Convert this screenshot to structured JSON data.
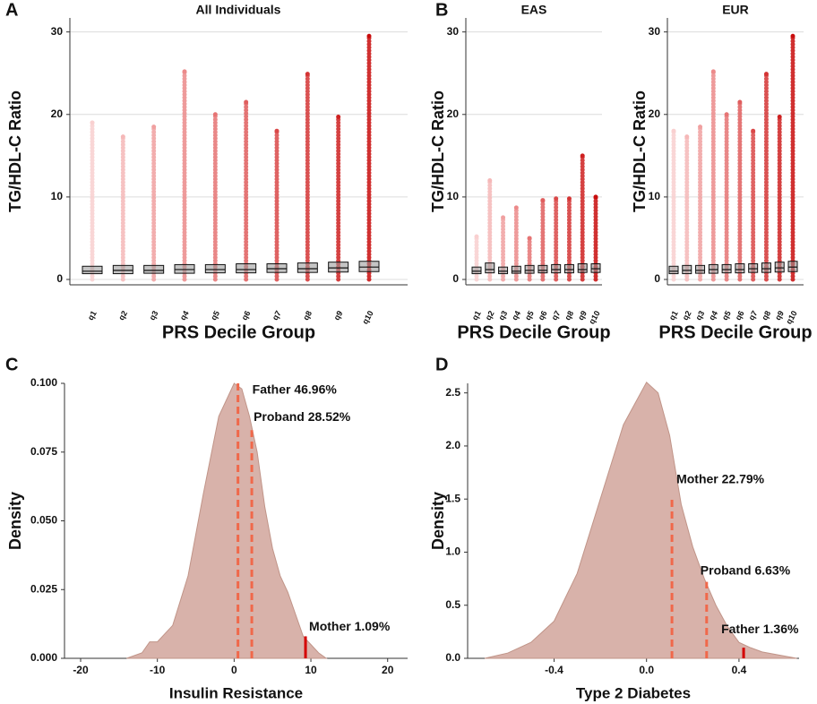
{
  "chart_data": [
    {
      "type": "box",
      "panel": "A",
      "title": "All Individuals",
      "y_label": "TG/HDL-C Ratio",
      "x_label": "PRS Decile Group",
      "categories": [
        "q1",
        "q2",
        "q3",
        "q4",
        "q5",
        "q6",
        "q7",
        "q8",
        "q9",
        "q10"
      ],
      "colors": [
        "#f9d0d0",
        "#f5b8b8",
        "#f0a0a0",
        "#ec8a8a",
        "#e67474",
        "#e05e5e",
        "#da4848",
        "#d43434",
        "#ce2020",
        "#c80c0c"
      ],
      "q1": [
        0.7,
        0.7,
        0.75,
        0.75,
        0.8,
        0.8,
        0.85,
        0.85,
        0.9,
        0.95
      ],
      "median": [
        1.0,
        1.1,
        1.1,
        1.2,
        1.2,
        1.2,
        1.3,
        1.3,
        1.4,
        1.5
      ],
      "q3": [
        1.6,
        1.7,
        1.7,
        1.8,
        1.8,
        1.9,
        1.9,
        2.0,
        2.1,
        2.2
      ],
      "max": [
        19,
        17.3,
        18.5,
        25.2,
        20,
        21.5,
        18,
        24.9,
        19.7,
        29.5
      ],
      "ylim": [
        -0.65,
        31.7
      ],
      "yticks": [
        0,
        10,
        20,
        30
      ],
      "grid": true
    },
    {
      "type": "box",
      "panel": "B",
      "title": "EAS",
      "y_label": "TG/HDL-C Ratio",
      "x_label": "PRS Decile Group",
      "categories": [
        "q1",
        "q2",
        "q3",
        "q4",
        "q5",
        "q6",
        "q7",
        "q8",
        "q9",
        "q10"
      ],
      "colors": [
        "#f9d0d0",
        "#f5b8b8",
        "#f0a0a0",
        "#ec8a8a",
        "#e67474",
        "#e05e5e",
        "#da4848",
        "#d43434",
        "#ce2020",
        "#c80c0c"
      ],
      "q1": [
        0.7,
        0.8,
        0.7,
        0.75,
        0.75,
        0.8,
        0.8,
        0.8,
        0.85,
        0.85
      ],
      "median": [
        1.0,
        1.2,
        1.0,
        1.0,
        1.1,
        1.1,
        1.2,
        1.2,
        1.2,
        1.3
      ],
      "q3": [
        1.5,
        2.0,
        1.5,
        1.6,
        1.7,
        1.7,
        1.8,
        1.8,
        1.9,
        1.9
      ],
      "max": [
        5.2,
        12,
        7.5,
        8.7,
        5,
        9.6,
        9.8,
        9.8,
        15,
        10
      ],
      "ylim": [
        -0.65,
        31.7
      ],
      "yticks": [
        0,
        10,
        20,
        30
      ],
      "grid": true
    },
    {
      "type": "box",
      "title": "EUR",
      "y_label": "TG/HDL-C Ratio",
      "x_label": "PRS Decile Group",
      "categories": [
        "q1",
        "q2",
        "q3",
        "q4",
        "q5",
        "q6",
        "q7",
        "q8",
        "q9",
        "q10"
      ],
      "colors": [
        "#f9d0d0",
        "#f5b8b8",
        "#f0a0a0",
        "#ec8a8a",
        "#e67474",
        "#e05e5e",
        "#da4848",
        "#d43434",
        "#ce2020",
        "#c80c0c"
      ],
      "q1": [
        0.7,
        0.7,
        0.75,
        0.75,
        0.8,
        0.8,
        0.85,
        0.85,
        0.9,
        0.95
      ],
      "median": [
        1.0,
        1.1,
        1.1,
        1.2,
        1.2,
        1.2,
        1.3,
        1.3,
        1.4,
        1.5
      ],
      "q3": [
        1.6,
        1.7,
        1.7,
        1.8,
        1.8,
        1.9,
        1.9,
        2.0,
        2.1,
        2.2
      ],
      "max": [
        18,
        17.3,
        18.5,
        25.2,
        20,
        21.5,
        18,
        24.9,
        19.7,
        29.5
      ],
      "ylim": [
        -0.65,
        31.7
      ],
      "yticks": [
        0,
        10,
        20,
        30
      ],
      "grid": true
    },
    {
      "type": "area",
      "panel": "C",
      "y_label": "Density",
      "x_label": "Insulin Resistance",
      "color": "#d8b2aa",
      "x": [
        -14,
        -12,
        -11,
        -10,
        -8,
        -6,
        -4,
        -2,
        0,
        1,
        2,
        3,
        4,
        5,
        6,
        7,
        8,
        9,
        10,
        11,
        12
      ],
      "values": [
        0,
        0.002,
        0.006,
        0.006,
        0.012,
        0.03,
        0.06,
        0.088,
        0.1,
        0.098,
        0.088,
        0.075,
        0.055,
        0.04,
        0.03,
        0.024,
        0.016,
        0.008,
        0.005,
        0.002,
        0
      ],
      "xlim": [
        -22.1,
        22.6
      ],
      "xticks": [
        -20,
        -10,
        0,
        10,
        20
      ],
      "ylim": [
        0,
        0.1
      ],
      "yticks": [
        {
          "value": 0,
          "label": "0.000"
        },
        {
          "value": 0.025,
          "label": "0.025"
        },
        {
          "value": 0.05,
          "label": "0.050"
        },
        {
          "value": 0.075,
          "label": "0.075"
        },
        {
          "value": 0.1,
          "label": "0.100"
        }
      ],
      "annotations": [
        {
          "label": "Father 46.96%",
          "x": 0.5,
          "y": 0.1,
          "style": "dashed",
          "color": "#f0684a"
        },
        {
          "label": "Proband 28.52%",
          "x": 2.3,
          "y": 0.083,
          "style": "dashed",
          "color": "#f0684a"
        },
        {
          "label": "Mother 1.09%",
          "x": 9.3,
          "y": 0.008,
          "style": "solid",
          "color": "#d40000"
        }
      ]
    },
    {
      "type": "area",
      "panel": "D",
      "y_label": "Density",
      "x_label": "Type 2 Diabetes",
      "color": "#d8b2aa",
      "x": [
        -0.7,
        -0.6,
        -0.5,
        -0.4,
        -0.3,
        -0.2,
        -0.1,
        0,
        0.05,
        0.1,
        0.15,
        0.2,
        0.25,
        0.3,
        0.35,
        0.4,
        0.45,
        0.5,
        0.6,
        0.65
      ],
      "values": [
        0,
        0.05,
        0.15,
        0.35,
        0.8,
        1.5,
        2.2,
        2.6,
        2.5,
        2.1,
        1.45,
        1.05,
        0.75,
        0.5,
        0.3,
        0.15,
        0.1,
        0.06,
        0.02,
        0
      ],
      "xlim": [
        -0.774,
        0.66
      ],
      "xticks": [
        -0.4,
        {
          "value": 0,
          "label": "0.0"
        },
        0.4
      ],
      "ylim": [
        0,
        2.59
      ],
      "yticks": [
        {
          "value": 0,
          "label": "0.0"
        },
        0.5,
        {
          "value": 1,
          "label": "1.0"
        },
        1.5,
        {
          "value": 2,
          "label": "2.0"
        },
        2.5
      ],
      "annotations": [
        {
          "label": "Mother 22.79%",
          "x": 0.11,
          "y": 1.53,
          "style": "dashed",
          "color": "#f0684a"
        },
        {
          "label": "Proband 6.63%",
          "x": 0.26,
          "y": 0.72,
          "style": "dashed",
          "color": "#f0684a"
        },
        {
          "label": "Father 1.36%",
          "x": 0.42,
          "y": 0.1,
          "style": "solid",
          "color": "#d40000"
        }
      ]
    }
  ]
}
